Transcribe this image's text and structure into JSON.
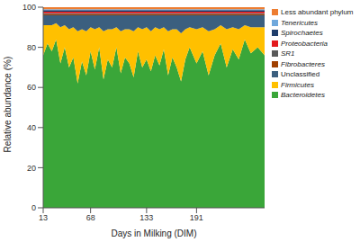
{
  "chart_data": {
    "type": "area",
    "stacked": true,
    "x_label": "Days in Milking (DIM)",
    "y_label": "Relative abundance (%)",
    "x": [
      13,
      18,
      23,
      28,
      33,
      38,
      43,
      48,
      53,
      58,
      63,
      68,
      73,
      78,
      83,
      88,
      93,
      98,
      103,
      108,
      113,
      118,
      123,
      128,
      133,
      138,
      143,
      148,
      153,
      158,
      163,
      168,
      173,
      178,
      183,
      191,
      198,
      205,
      212,
      219,
      226,
      233,
      240,
      247,
      254,
      262,
      270
    ],
    "xlim": [
      13,
      270
    ],
    "xticks": [
      13,
      68,
      133,
      191
    ],
    "ylim": [
      0,
      100
    ],
    "yticks": [
      0,
      20,
      40,
      60,
      80,
      100
    ],
    "legend": "right",
    "series": [
      {
        "name": "Bacteroidetes",
        "color": "#3aa639",
        "values": [
          76,
          82,
          78,
          84,
          72,
          80,
          70,
          75,
          62,
          73,
          66,
          78,
          69,
          80,
          64,
          74,
          70,
          80,
          67,
          75,
          72,
          65,
          78,
          70,
          74,
          68,
          76,
          71,
          79,
          66,
          75,
          70,
          63,
          74,
          80,
          72,
          78,
          66,
          76,
          82,
          70,
          79,
          74,
          84,
          77,
          80,
          76
        ]
      },
      {
        "name": "Firmicutes",
        "color": "#ffc000",
        "values": [
          15,
          9,
          13,
          8,
          18,
          11,
          19,
          15,
          26,
          16,
          22,
          12,
          20,
          10,
          24,
          15,
          19,
          10,
          21,
          14,
          17,
          23,
          12,
          19,
          16,
          20,
          14,
          18,
          11,
          22,
          14,
          19,
          24,
          15,
          10,
          17,
          12,
          22,
          13,
          9,
          19,
          11,
          15,
          7,
          13,
          10,
          14
        ]
      },
      {
        "name": "Unclassified",
        "color": "#3b5f7f",
        "values": [
          5,
          5,
          5,
          4,
          6,
          5,
          7,
          6,
          8,
          7,
          8,
          6,
          7,
          6,
          8,
          7,
          7,
          6,
          8,
          7,
          7,
          8,
          6,
          7,
          6,
          8,
          6,
          7,
          6,
          8,
          7,
          7,
          9,
          7,
          6,
          7,
          6,
          8,
          7,
          5,
          7,
          6,
          7,
          5,
          6,
          6,
          6
        ]
      },
      {
        "name": "Fibrobacteres",
        "color": "#a04000",
        "values": [
          0.5,
          0.5,
          0.5,
          0.5,
          0.5,
          0.5,
          0.5,
          0.5,
          0.5,
          0.5,
          0.5,
          0.5,
          0.5,
          0.5,
          0.5,
          0.5,
          0.5,
          0.5,
          0.5,
          0.5,
          0.5,
          0.5,
          0.5,
          0.5,
          0.5,
          0.5,
          0.5,
          0.5,
          0.5,
          0.5,
          0.5,
          0.5,
          0.5,
          0.5,
          0.5,
          0.5,
          0.5,
          0.5,
          0.5,
          0.5,
          0.5,
          0.5,
          0.5,
          0.5,
          0.5,
          0.5,
          0.5
        ]
      },
      {
        "name": "SR1",
        "color": "#595959",
        "values": [
          0.5,
          0.5,
          0.5,
          0.5,
          0.5,
          0.5,
          0.5,
          0.5,
          0.5,
          0.5,
          0.5,
          0.5,
          0.5,
          0.5,
          0.5,
          0.5,
          0.5,
          0.5,
          0.5,
          0.5,
          0.5,
          0.5,
          0.5,
          0.5,
          0.5,
          0.5,
          0.5,
          0.5,
          0.5,
          0.5,
          0.5,
          0.5,
          0.5,
          0.5,
          0.5,
          0.5,
          0.5,
          0.5,
          0.5,
          0.5,
          0.5,
          0.5,
          0.5,
          0.5,
          0.5,
          0.5,
          0.5
        ]
      },
      {
        "name": "Proteobacteria",
        "color": "#e31a1c",
        "values": [
          0.8,
          0.8,
          0.8,
          0.8,
          0.8,
          0.8,
          0.8,
          0.8,
          0.8,
          0.8,
          0.8,
          0.8,
          0.8,
          0.8,
          0.8,
          0.8,
          0.8,
          0.8,
          0.8,
          0.8,
          0.8,
          0.8,
          0.8,
          0.8,
          0.8,
          0.8,
          0.8,
          0.8,
          0.8,
          0.8,
          0.8,
          0.8,
          0.8,
          0.8,
          0.8,
          0.8,
          0.8,
          0.8,
          0.8,
          0.8,
          0.8,
          0.8,
          0.8,
          0.8,
          0.8,
          0.8,
          0.8
        ]
      },
      {
        "name": "Spirochaetes",
        "color": "#1f3d6b",
        "values": [
          0.7,
          0.7,
          0.7,
          0.7,
          0.7,
          0.7,
          0.7,
          0.7,
          0.7,
          0.7,
          0.7,
          0.7,
          0.7,
          0.7,
          0.7,
          0.7,
          0.7,
          0.7,
          0.7,
          0.7,
          0.7,
          0.7,
          0.7,
          0.7,
          0.7,
          0.7,
          0.7,
          0.7,
          0.7,
          0.7,
          0.7,
          0.7,
          0.7,
          0.7,
          0.7,
          0.7,
          0.7,
          0.7,
          0.7,
          0.7,
          0.7,
          0.7,
          0.7,
          0.7,
          0.7,
          0.7,
          0.7
        ]
      },
      {
        "name": "Tenericutes",
        "color": "#6fa8dc",
        "values": [
          0.5,
          0.5,
          0.5,
          0.5,
          0.5,
          0.5,
          0.5,
          0.5,
          0.5,
          0.5,
          0.5,
          0.5,
          0.5,
          0.5,
          0.5,
          0.5,
          0.5,
          0.5,
          0.5,
          0.5,
          0.5,
          0.5,
          0.5,
          0.5,
          0.5,
          0.5,
          0.5,
          0.5,
          0.5,
          0.5,
          0.5,
          0.5,
          0.5,
          0.5,
          0.5,
          0.5,
          0.5,
          0.5,
          0.5,
          0.5,
          0.5,
          0.5,
          0.5,
          0.5,
          0.5,
          0.5,
          0.5
        ]
      },
      {
        "name": "Less abundant phylum",
        "color": "#ed7d31",
        "values": [
          1,
          1,
          1,
          1,
          1,
          1,
          1,
          1,
          1,
          1,
          1,
          1,
          1,
          1,
          1,
          1,
          1,
          1,
          1,
          1,
          1,
          1,
          1,
          1,
          1,
          1,
          1,
          1,
          1,
          1,
          1,
          1,
          1,
          1,
          1,
          1,
          1,
          1,
          1,
          1,
          1,
          1,
          1,
          1,
          1,
          1,
          1
        ]
      }
    ]
  }
}
